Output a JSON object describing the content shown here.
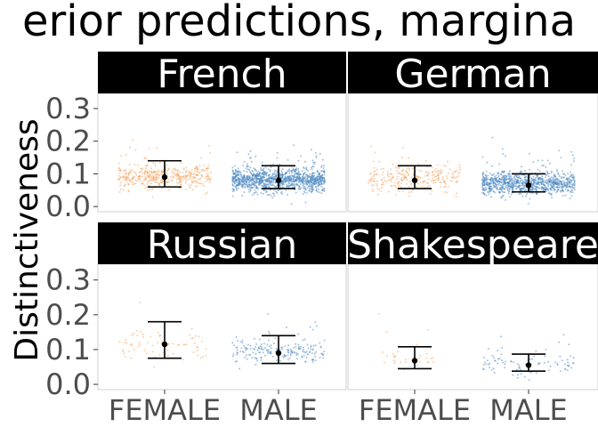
{
  "chart_data": {
    "type": "scatter",
    "title": "erior predictions, margina",
    "xlabel": "",
    "ylabel": "Distinctiveness",
    "ylim": [
      -0.005,
      0.33
    ],
    "y_ticks": [
      "0.0",
      "0.1",
      "0.2",
      "0.3"
    ],
    "categories": [
      "FEMALE",
      "MALE"
    ],
    "grid": false,
    "legend": "none",
    "colors": {
      "FEMALE": "#f4a259",
      "MALE": "#4a86c0",
      "strip_bg": "#000000",
      "strip_text": "#ffffff",
      "estimate": "#000000"
    },
    "panels": [
      {
        "name": "French",
        "estimates": [
          {
            "category": "FEMALE",
            "mean": 0.09,
            "lower": 0.06,
            "upper": 0.14
          },
          {
            "category": "MALE",
            "mean": 0.08,
            "lower": 0.055,
            "upper": 0.125
          }
        ],
        "point_clouds": [
          {
            "category": "FEMALE",
            "count": 420,
            "center": 0.09,
            "spread": 0.03
          },
          {
            "category": "MALE",
            "count": 1100,
            "center": 0.08,
            "spread": 0.03
          }
        ]
      },
      {
        "name": "German",
        "estimates": [
          {
            "category": "FEMALE",
            "mean": 0.08,
            "lower": 0.055,
            "upper": 0.125
          },
          {
            "category": "MALE",
            "mean": 0.065,
            "lower": 0.045,
            "upper": 0.1
          }
        ],
        "point_clouds": [
          {
            "category": "FEMALE",
            "count": 260,
            "center": 0.085,
            "spread": 0.035
          },
          {
            "category": "MALE",
            "count": 900,
            "center": 0.07,
            "spread": 0.03
          }
        ]
      },
      {
        "name": "Russian",
        "estimates": [
          {
            "category": "FEMALE",
            "mean": 0.115,
            "lower": 0.075,
            "upper": 0.18
          },
          {
            "category": "MALE",
            "mean": 0.09,
            "lower": 0.06,
            "upper": 0.14
          }
        ],
        "point_clouds": [
          {
            "category": "FEMALE",
            "count": 70,
            "center": 0.11,
            "spread": 0.035
          },
          {
            "category": "MALE",
            "count": 200,
            "center": 0.095,
            "spread": 0.03
          }
        ]
      },
      {
        "name": "Shakespeare",
        "estimates": [
          {
            "category": "FEMALE",
            "mean": 0.068,
            "lower": 0.045,
            "upper": 0.108
          },
          {
            "category": "MALE",
            "mean": 0.055,
            "lower": 0.038,
            "upper": 0.087
          }
        ],
        "point_clouds": [
          {
            "category": "FEMALE",
            "count": 30,
            "center": 0.07,
            "spread": 0.035
          },
          {
            "category": "MALE",
            "count": 90,
            "center": 0.06,
            "spread": 0.03
          }
        ]
      }
    ]
  }
}
